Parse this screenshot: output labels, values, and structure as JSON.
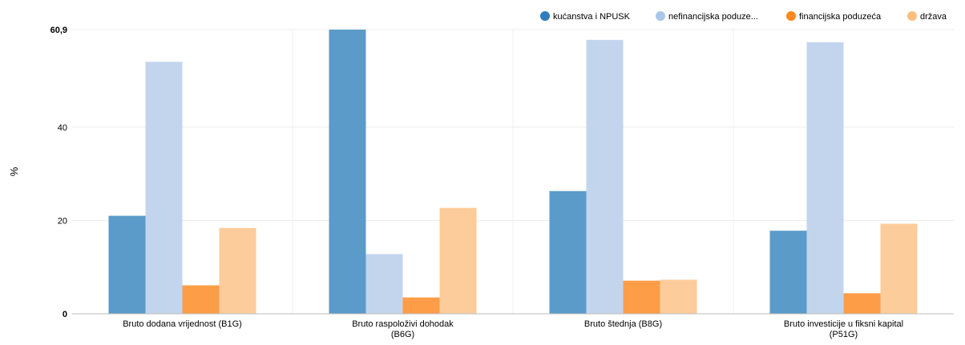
{
  "chart_data": {
    "type": "bar",
    "ylabel": "%",
    "ylim": [
      0,
      60.9
    ],
    "yticks": [
      {
        "value": 0,
        "label": "0"
      },
      {
        "value": 20,
        "label": "20"
      },
      {
        "value": 40,
        "label": "40"
      },
      {
        "value": 60.9,
        "label": "60,9"
      }
    ],
    "grid": true,
    "legend_position": "top-right",
    "categories": [
      [
        "Bruto dodana vrijednost (B1G)"
      ],
      [
        "Bruto raspoloživi dohodak",
        "(B6G)"
      ],
      [
        "Bruto štednja (B8G)"
      ],
      [
        "Bruto investicije u fiksni kapital",
        "(P51G)"
      ]
    ],
    "series": [
      {
        "name": "kućanstva i NPUSK",
        "legend_label": "kućanstva i NPUSK",
        "color": "#5b9bc9",
        "legend_color": "#2f7dbf",
        "values": [
          21.0,
          60.9,
          26.3,
          17.8
        ]
      },
      {
        "name": "nefinancijska poduzeća",
        "legend_label": "nefinancijska poduze...",
        "color": "#c3d5ed",
        "legend_color": "#aac7ea",
        "values": [
          54.0,
          12.8,
          58.7,
          58.2
        ]
      },
      {
        "name": "financijska poduzeća",
        "legend_label": "financijska poduzeća",
        "color": "#fd9d48",
        "legend_color": "#fd8a1f",
        "values": [
          6.1,
          3.5,
          7.1,
          4.4
        ]
      },
      {
        "name": "država",
        "legend_label": "država",
        "color": "#fdcc9b",
        "legend_color": "#fdbe7f",
        "values": [
          18.4,
          22.7,
          7.3,
          19.3
        ]
      }
    ]
  }
}
